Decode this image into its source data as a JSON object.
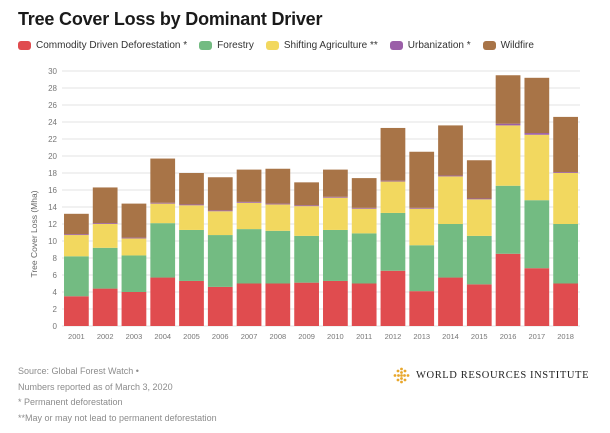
{
  "chart_data": {
    "type": "bar",
    "stacked": true,
    "title": "Tree Cover Loss by Dominant Driver",
    "xlabel": "",
    "ylabel": "Tree Cover Loss (Mha)",
    "ylim": [
      0,
      30
    ],
    "yticks": [
      0,
      2,
      4,
      6,
      8,
      10,
      12,
      14,
      16,
      18,
      20,
      22,
      24,
      26,
      28,
      30
    ],
    "grid": true,
    "legend_position": "top-left",
    "categories": [
      "2001",
      "2002",
      "2003",
      "2004",
      "2005",
      "2006",
      "2007",
      "2008",
      "2009",
      "2010",
      "2011",
      "2012",
      "2013",
      "2014",
      "2015",
      "2016",
      "2017",
      "2018"
    ],
    "series": [
      {
        "name": "Commodity Driven Deforestation *",
        "color": "#e04c4f",
        "values": [
          3.5,
          4.4,
          4.0,
          5.7,
          5.3,
          4.6,
          5.0,
          5.0,
          5.1,
          5.3,
          5.0,
          6.5,
          4.1,
          5.7,
          4.9,
          8.5,
          6.8,
          5.0
        ]
      },
      {
        "name": "Forestry",
        "color": "#73bb82",
        "values": [
          4.7,
          4.8,
          4.3,
          6.4,
          6.0,
          6.1,
          6.4,
          6.2,
          5.5,
          6.0,
          5.9,
          6.8,
          5.4,
          6.3,
          5.7,
          8.0,
          8.0,
          7.0
        ]
      },
      {
        "name": "Shifting Agriculture **",
        "color": "#f2d85f",
        "values": [
          2.5,
          2.8,
          2.0,
          2.3,
          2.9,
          2.8,
          3.1,
          3.1,
          3.5,
          3.8,
          2.9,
          3.7,
          4.3,
          5.6,
          4.3,
          7.1,
          7.7,
          6.0
        ]
      },
      {
        "name": "Urbanization *",
        "color": "#9b5fa8",
        "values": [
          0.1,
          0.1,
          0.1,
          0.1,
          0.1,
          0.1,
          0.1,
          0.1,
          0.1,
          0.1,
          0.1,
          0.1,
          0.1,
          0.1,
          0.1,
          0.2,
          0.2,
          0.1
        ]
      },
      {
        "name": "Wildfire",
        "color": "#a87447",
        "values": [
          2.4,
          4.2,
          4.0,
          5.2,
          3.7,
          3.9,
          3.8,
          4.1,
          2.7,
          3.2,
          3.5,
          6.2,
          6.6,
          5.9,
          4.5,
          5.7,
          6.5,
          6.5
        ]
      }
    ]
  },
  "footer": {
    "source": "Source: Global Forest Watch •",
    "date": "Numbers reported as of March 3, 2020",
    "note1": "* Permanent deforestation",
    "note2": "**May or may not lead to permanent deforestation"
  },
  "logo": {
    "text": "WORLD RESOURCES INSTITUTE",
    "color": "#e8a72c"
  }
}
